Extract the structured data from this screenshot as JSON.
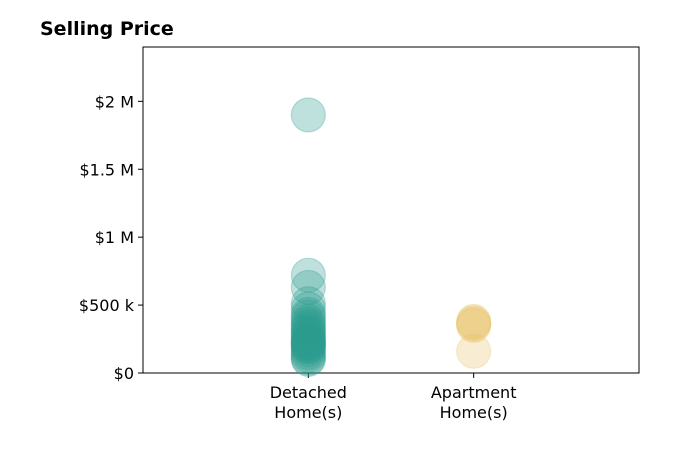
{
  "chart_data": {
    "type": "scatter",
    "title": "Selling Price",
    "xlabel": "",
    "ylabel": "",
    "categories": [
      [
        "Detached",
        "Home(s)"
      ],
      [
        "Apartment",
        "Home(s)"
      ]
    ],
    "xlim": [
      0,
      3
    ],
    "ylim": [
      0,
      2400000
    ],
    "y_ticks": [
      0,
      500000,
      1000000,
      1500000,
      2000000
    ],
    "y_tick_labels": [
      "$0",
      "$500 k",
      "$1 M",
      "$1.5 M",
      "$2 M"
    ],
    "grid": false,
    "legend": "none",
    "series": [
      {
        "category_index": 0,
        "color": "#2a9d8f",
        "opacity": 0.3,
        "values": [
          1900000,
          720000,
          630000,
          510000,
          470000,
          430000,
          410000,
          380000,
          360000,
          340000,
          320000,
          300000,
          290000,
          270000,
          250000,
          240000,
          230000,
          220000,
          210000,
          200000,
          190000,
          170000,
          150000,
          130000,
          110000,
          100000
        ]
      },
      {
        "category_index": 1,
        "color": "#e9c46a",
        "opacity": 0.3,
        "values": [
          380000,
          370000,
          360000,
          350000,
          160000
        ]
      }
    ]
  }
}
